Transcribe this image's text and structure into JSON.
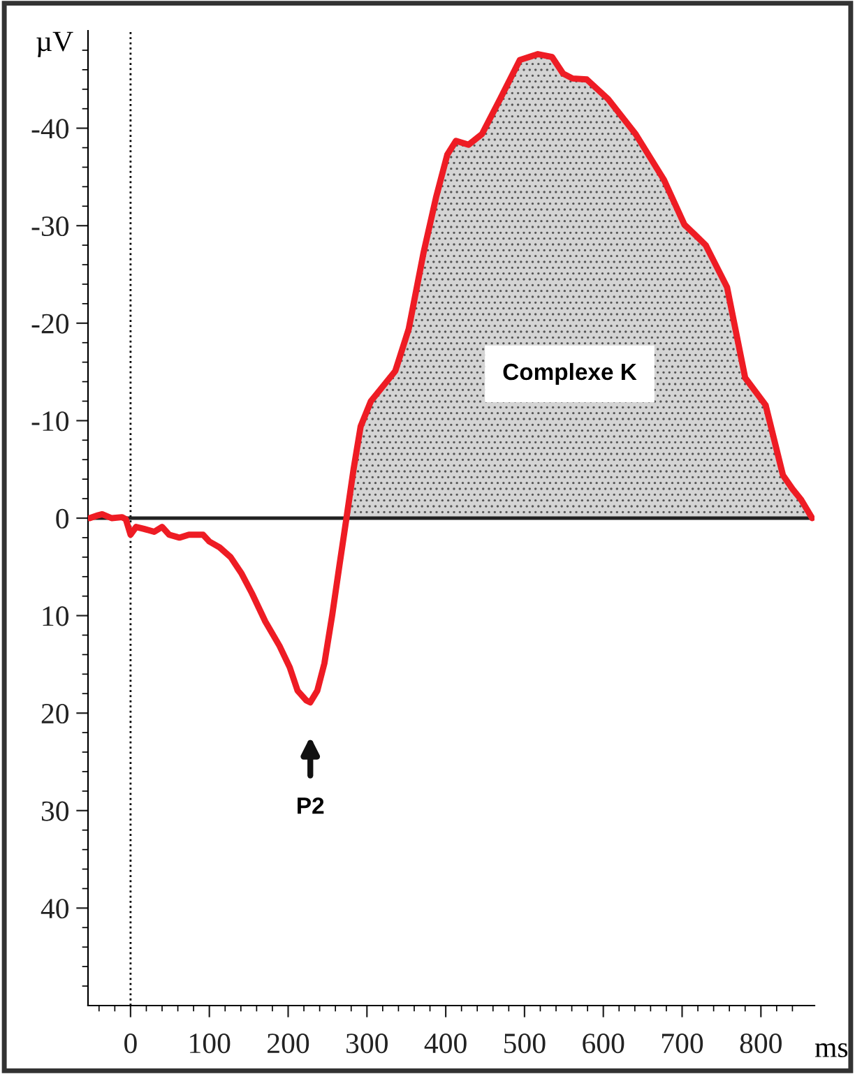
{
  "chart_data": {
    "type": "line",
    "xlabel": "ms",
    "ylabel": "µV",
    "x": [
      -52,
      -41,
      -36,
      -24,
      -11,
      -6,
      0,
      7,
      17,
      30,
      40,
      49,
      62,
      74,
      92,
      100,
      113,
      127,
      141,
      154,
      171,
      189,
      202,
      212,
      223,
      228,
      237,
      246,
      256,
      265,
      274,
      283,
      292,
      305,
      319,
      336,
      353,
      372,
      388,
      402,
      413,
      429,
      446,
      469,
      494,
      517,
      535,
      549,
      561,
      579,
      606,
      641,
      677,
      703,
      716,
      730,
      757,
      780,
      806,
      828,
      840,
      851,
      865
    ],
    "series": [
      {
        "type": "area",
        "color": "#d4d4d4",
        "x": [
          274,
          283,
          292,
          305,
          319,
          336,
          353,
          372,
          388,
          402,
          413,
          429,
          446,
          469,
          494,
          517,
          535,
          549,
          561,
          579,
          606,
          641,
          677,
          703,
          716,
          730,
          757,
          780,
          806,
          828,
          840,
          851,
          865
        ],
        "values": [
          0,
          -5,
          -9.4,
          -12,
          -13.4,
          -15.1,
          -19.4,
          -27.3,
          -33,
          -37.3,
          -38.7,
          -38.3,
          -39.4,
          -43,
          -47,
          -47.6,
          -47.3,
          -45.6,
          -45.1,
          -45,
          -43,
          -39.4,
          -34.7,
          -30.1,
          -29.1,
          -28,
          -23.7,
          -14.4,
          -11.6,
          -4.4,
          -3,
          -1.9,
          0
        ]
      },
      {
        "color": "#ee1c24",
        "values": [
          0,
          -0.3,
          -0.4,
          0,
          -0.1,
          0.1,
          1.7,
          0.9,
          1.1,
          1.4,
          0.9,
          1.7,
          2,
          1.7,
          1.7,
          2.4,
          3,
          4,
          5.7,
          7.7,
          10.6,
          13.1,
          15.3,
          17.7,
          18.7,
          18.9,
          17.7,
          14.9,
          9.9,
          4.9,
          0,
          -5,
          -9.4,
          -12,
          -13.4,
          -15.1,
          -19.4,
          -27.3,
          -33,
          -37.3,
          -38.7,
          -38.3,
          -39.4,
          -43,
          -47,
          -47.6,
          -47.3,
          -45.6,
          -45.1,
          -45,
          -43,
          -39.4,
          -34.7,
          -30.1,
          -29.1,
          -28,
          -23.7,
          -14.4,
          -11.6,
          -4.4,
          -3,
          -1.9,
          0
        ]
      }
    ],
    "xlim": [
      -54,
      868
    ],
    "ylim": [
      50,
      -50
    ],
    "xticks": [
      {
        "value": -40,
        "label": null
      },
      {
        "value": -20,
        "label": null
      },
      0,
      {
        "value": 20,
        "label": null
      },
      {
        "value": 40,
        "label": null
      },
      {
        "value": 60,
        "label": null
      },
      {
        "value": 80,
        "label": null
      },
      100,
      {
        "value": 120,
        "label": null
      },
      {
        "value": 140,
        "label": null
      },
      {
        "value": 160,
        "label": null
      },
      {
        "value": 180,
        "label": null
      },
      200,
      {
        "value": 220,
        "label": null
      },
      {
        "value": 240,
        "label": null
      },
      {
        "value": 260,
        "label": null
      },
      {
        "value": 280,
        "label": null
      },
      300,
      {
        "value": 320,
        "label": null
      },
      {
        "value": 340,
        "label": null
      },
      {
        "value": 360,
        "label": null
      },
      {
        "value": 380,
        "label": null
      },
      400,
      {
        "value": 420,
        "label": null
      },
      {
        "value": 440,
        "label": null
      },
      {
        "value": 460,
        "label": null
      },
      {
        "value": 480,
        "label": null
      },
      500,
      {
        "value": 520,
        "label": null
      },
      {
        "value": 540,
        "label": null
      },
      {
        "value": 560,
        "label": null
      },
      {
        "value": 580,
        "label": null
      },
      600,
      {
        "value": 620,
        "label": null
      },
      {
        "value": 640,
        "label": null
      },
      {
        "value": 660,
        "label": null
      },
      {
        "value": 680,
        "label": null
      },
      700,
      {
        "value": 720,
        "label": null
      },
      {
        "value": 740,
        "label": null
      },
      {
        "value": 760,
        "label": null
      },
      {
        "value": 780,
        "label": null
      },
      800,
      {
        "value": 820,
        "label": null
      },
      {
        "value": 840,
        "label": null
      }
    ],
    "yticks": [
      {
        "value": -48,
        "label": null
      },
      {
        "value": -46,
        "label": null
      },
      {
        "value": -44,
        "label": null
      },
      {
        "value": -42,
        "label": null
      },
      -40,
      {
        "value": -38,
        "label": null
      },
      {
        "value": -36,
        "label": null
      },
      {
        "value": -34,
        "label": null
      },
      {
        "value": -32,
        "label": null
      },
      -30,
      {
        "value": -28,
        "label": null
      },
      {
        "value": -26,
        "label": null
      },
      {
        "value": -24,
        "label": null
      },
      {
        "value": -22,
        "label": null
      },
      -20,
      {
        "value": -18,
        "label": null
      },
      {
        "value": -16,
        "label": null
      },
      {
        "value": -14,
        "label": null
      },
      {
        "value": -12,
        "label": null
      },
      -10,
      {
        "value": -8,
        "label": null
      },
      {
        "value": -6,
        "label": null
      },
      {
        "value": -4,
        "label": null
      },
      {
        "value": -2,
        "label": null
      },
      0,
      {
        "value": 2,
        "label": null
      },
      {
        "value": 4,
        "label": null
      },
      {
        "value": 6,
        "label": null
      },
      {
        "value": 8,
        "label": null
      },
      10,
      {
        "value": 12,
        "label": null
      },
      {
        "value": 14,
        "label": null
      },
      {
        "value": 16,
        "label": null
      },
      {
        "value": 18,
        "label": null
      },
      20,
      {
        "value": 22,
        "label": null
      },
      {
        "value": 24,
        "label": null
      },
      {
        "value": 26,
        "label": null
      },
      {
        "value": 28,
        "label": null
      },
      30,
      {
        "value": 32,
        "label": null
      },
      {
        "value": 34,
        "label": null
      },
      {
        "value": 36,
        "label": null
      },
      {
        "value": 38,
        "label": null
      },
      40,
      {
        "value": 42,
        "label": null
      },
      {
        "value": 44,
        "label": null
      },
      {
        "value": 46,
        "label": null
      },
      {
        "value": 48,
        "label": null
      }
    ],
    "ref_lines": [
      {
        "axis": "x",
        "value": 0,
        "line_style": "dotted",
        "color": "#000000"
      },
      {
        "axis": "y",
        "value": 0,
        "line_style": "solid",
        "color": "#222222"
      }
    ],
    "annotations": [
      "Complexe K",
      "P2"
    ],
    "grid": false,
    "legend": false
  }
}
